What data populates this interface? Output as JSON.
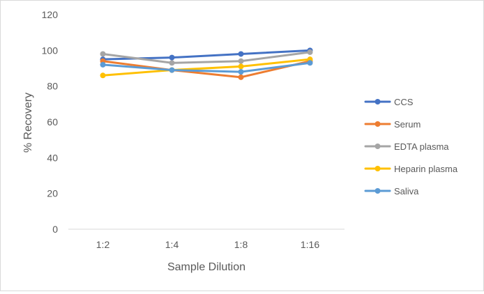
{
  "chart_data": {
    "type": "line",
    "categories": [
      "1:2",
      "1:4",
      "1:8",
      "1:16"
    ],
    "xlabel": "Sample Dilution",
    "ylabel": "% Recovery",
    "ylim": [
      0,
      120
    ],
    "yticks": [
      "0",
      "20",
      "40",
      "60",
      "80",
      "100",
      "120"
    ],
    "grid": false,
    "legend_position": "right",
    "series": [
      {
        "name": "CCS",
        "color": "#4472C4",
        "values": [
          95,
          96,
          98,
          100
        ]
      },
      {
        "name": "Serum",
        "color": "#ED7D31",
        "values": [
          94,
          89,
          85,
          94
        ]
      },
      {
        "name": "EDTA plasma",
        "color": "#A5A5A5",
        "values": [
          98,
          93,
          94,
          99
        ]
      },
      {
        "name": "Heparin plasma",
        "color": "#FFC000",
        "values": [
          86,
          89,
          91,
          95
        ]
      },
      {
        "name": "Saliva",
        "color": "#5B9BD5",
        "values": [
          92,
          89,
          88,
          93
        ]
      }
    ]
  }
}
